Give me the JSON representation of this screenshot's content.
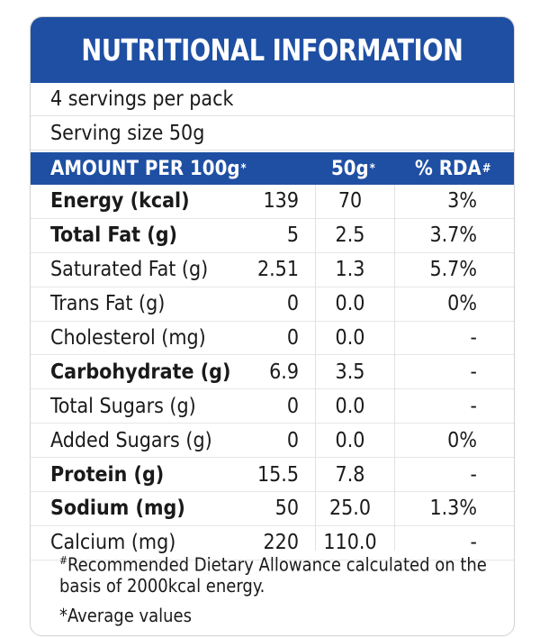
{
  "title": "NUTRITIONAL INFORMATION",
  "servings_per_pack": "4 servings per pack",
  "serving_size": "Serving size 50g",
  "header": {
    "col_name": "AMOUNT PER 100g",
    "col_name_sup": "*",
    "col_50g": "50g",
    "col_50g_sup": "*",
    "col_rda": "% RDA",
    "col_rda_sup": "#"
  },
  "rows": [
    {
      "name": "Energy (kcal)",
      "per100": "139",
      "per50": "70",
      "rda": "3%"
    },
    {
      "name": "Total Fat (g)",
      "per100": "5",
      "per50": "2.5",
      "rda": "3.7%"
    },
    {
      "name": "Saturated Fat (g)",
      "per100": "2.51",
      "per50": "1.3",
      "rda": "5.7%"
    },
    {
      "name": "Trans Fat (g)",
      "per100": "0",
      "per50": "0.0",
      "rda": "0%"
    },
    {
      "name": "Cholesterol (mg)",
      "per100": "0",
      "per50": "0.0",
      "rda": "-"
    },
    {
      "name": "Carbohydrate (g)",
      "per100": "6.9",
      "per50": "3.5",
      "rda": "-"
    },
    {
      "name": "Total Sugars (g)",
      "per100": "0",
      "per50": "0.0",
      "rda": "-"
    },
    {
      "name": "Added Sugars (g)",
      "per100": "0",
      "per50": "0.0",
      "rda": "0%"
    },
    {
      "name": "Protein (g)",
      "per100": "15.5",
      "per50": "7.8",
      "rda": "-"
    },
    {
      "name": "Sodium (mg)",
      "per100": "50",
      "per50": "25.0",
      "rda": "1.3%"
    },
    {
      "name": "Calcium (mg)",
      "per100": "220",
      "per50": "110.0",
      "rda": "-"
    }
  ],
  "footnote_rda_sup": "#",
  "footnote_rda": "Recommended Dietary Allowance calculated on the basis of 2000kcal energy.",
  "footnote_avg": "*Average values",
  "colors": {
    "brand_blue": "#1e4fa3"
  }
}
